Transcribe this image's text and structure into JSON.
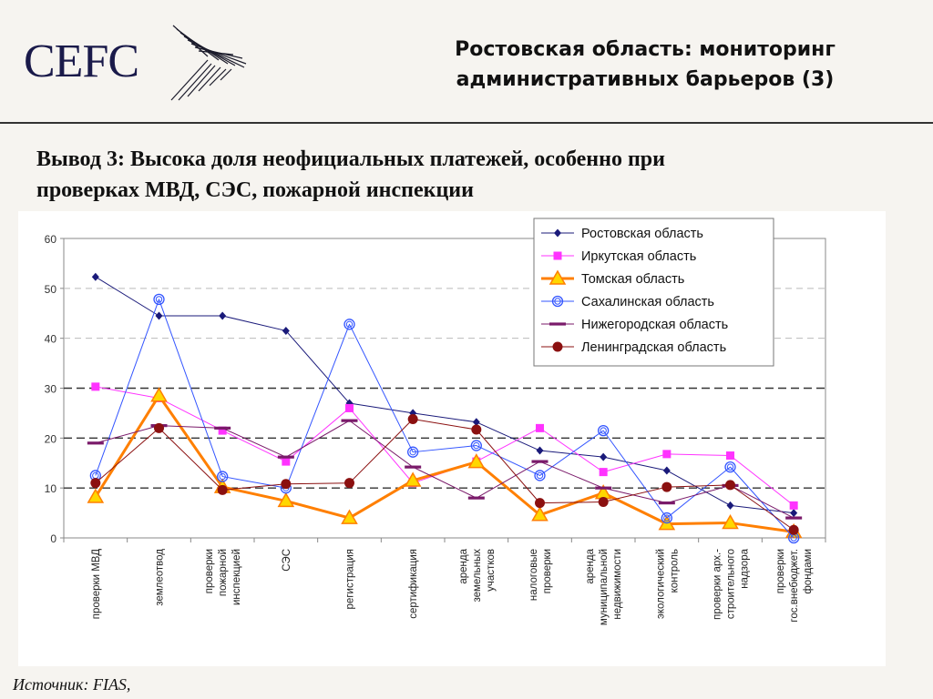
{
  "header": {
    "logo": "CEFC",
    "title_line1": "Ростовская область: мониторинг",
    "title_line2": "административных барьеров (3)"
  },
  "conclusion": {
    "line1": "Вывод 3: Высока доля неофициальных платежей, особенно при",
    "line2": "проверках МВД, СЭС, пожарной инспекции"
  },
  "footer": {
    "source": "Источник: FIAS,"
  },
  "chart_data": {
    "type": "line",
    "title": "",
    "xlabel": "",
    "ylabel": "",
    "ylim": [
      0,
      60
    ],
    "yticks": [
      0,
      10,
      20,
      30,
      40,
      50,
      60
    ],
    "grid": "dashed horizontal at 10, 20, 30",
    "legend_position": "top-right",
    "categories": [
      [
        "проверки МВД"
      ],
      [
        "землеотвод"
      ],
      [
        "проверки",
        "пожарной",
        "инспекцией"
      ],
      [
        "СЭС"
      ],
      [
        "регистрация"
      ],
      [
        "сертификация"
      ],
      [
        "аренда",
        "земельных",
        "участков"
      ],
      [
        "налоговые",
        "проверки"
      ],
      [
        "аренда",
        "муниципальной",
        "недвижимости"
      ],
      [
        "экологический",
        "контроль"
      ],
      [
        "проверки арх.-",
        "строительного",
        "надзора"
      ],
      [
        "проверки",
        "гос.внебюджет.",
        "фондами"
      ]
    ],
    "series": [
      {
        "name": "Ростовская область",
        "color": "#1a1a7a",
        "marker": "diamond",
        "width": 1,
        "values": [
          52.3,
          44.5,
          44.5,
          41.5,
          27,
          25,
          23.2,
          17.5,
          16.2,
          13.5,
          6.5,
          5
        ]
      },
      {
        "name": "Иркутская область",
        "color": "#ff33ff",
        "marker": "square",
        "width": 1,
        "values": [
          30.3,
          28,
          21.5,
          15.3,
          26,
          11,
          15.3,
          22,
          13.2,
          16.8,
          16.5,
          6.5
        ]
      },
      {
        "name": "Томская область",
        "color": "#ff7f00",
        "marker": "triangle",
        "width": 3,
        "values": [
          8.2,
          28.5,
          10.2,
          7.4,
          4,
          11.5,
          15.2,
          4.6,
          9,
          2.8,
          3,
          1.2
        ]
      },
      {
        "name": "Сахалинская область",
        "color": "#3355ff",
        "marker": "circle",
        "width": 1,
        "values": [
          12.5,
          47.8,
          12.3,
          10,
          42.8,
          17.2,
          18.5,
          12.5,
          21.5,
          4,
          14.2,
          0
        ]
      },
      {
        "name": "Нижегородская область",
        "color": "#7a1a6a",
        "marker": "dash",
        "width": 1,
        "values": [
          19,
          22.5,
          22,
          16.2,
          23.5,
          14.2,
          8,
          15.3,
          10,
          7,
          10.5,
          4
        ]
      },
      {
        "name": "Ленинградская область",
        "color": "#8b1010",
        "marker": "dot",
        "width": 1,
        "values": [
          11,
          22,
          9.6,
          10.8,
          11,
          23.8,
          21.7,
          7,
          7.2,
          10.2,
          10.6,
          1.6
        ]
      }
    ]
  }
}
